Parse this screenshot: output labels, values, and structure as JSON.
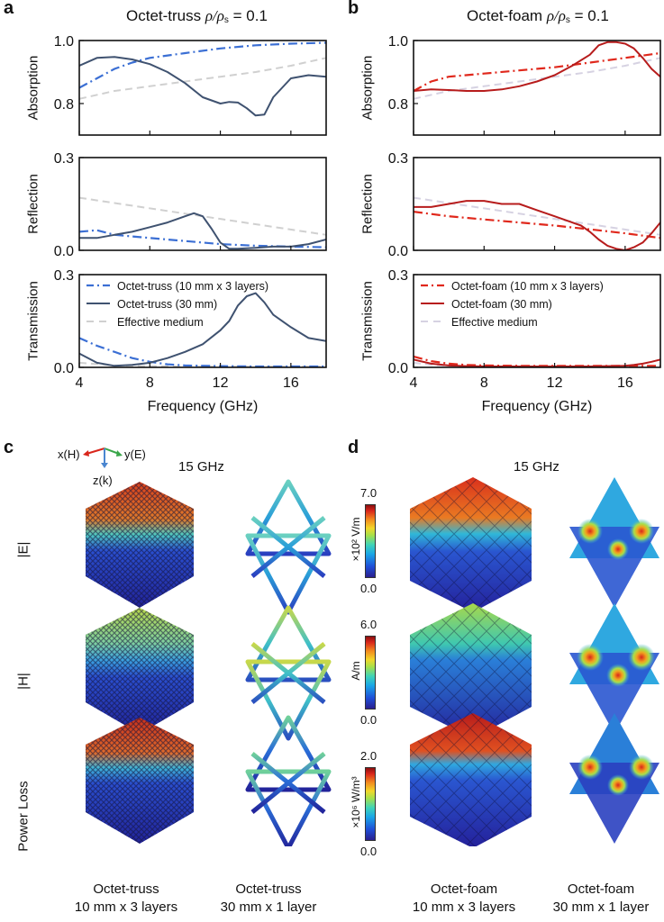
{
  "panels": {
    "a": {
      "letter": "a",
      "title_prefix": "Octet-truss ",
      "title_rho": "ρ/ρ",
      "title_sub": "s",
      "title_suffix": " = 0.1"
    },
    "b": {
      "letter": "b",
      "title_prefix": "Octet-foam ",
      "title_rho": "ρ/ρ",
      "title_sub": "s",
      "title_suffix": " = 0.1"
    },
    "c": {
      "letter": "c",
      "frequency_label": "15 GHz",
      "axes_triad": {
        "x": "x(H)",
        "y": "y(E)",
        "z": "z(k)"
      },
      "row_labels": [
        "|E|",
        "|H|",
        "Power Loss"
      ],
      "captions": [
        {
          "line1": "Octet-truss",
          "line2": "10 mm x 3 layers"
        },
        {
          "line1": "Octet-truss",
          "line2": "30 mm x 1 layer"
        }
      ]
    },
    "d": {
      "letter": "d",
      "frequency_label": "15 GHz",
      "colorbars": [
        {
          "max": "7.0",
          "min": "0.0",
          "unit": "×10² V/m"
        },
        {
          "max": "6.0",
          "min": "0.0",
          "unit": "A/m"
        },
        {
          "max": "2.0",
          "min": "0.0",
          "unit": "×10⁶ W/m³"
        }
      ],
      "captions": [
        {
          "line1": "Octet-foam",
          "line2": "10 mm x 3 layers"
        },
        {
          "line1": "Octet-foam",
          "line2": "30 mm x 1 layer"
        }
      ]
    }
  },
  "colors": {
    "truss_layers": "#3b6fd4",
    "truss_30mm": "#3f5270",
    "foam_layers": "#e0281c",
    "foam_30mm": "#b71c1c",
    "effective_medium_a": "#d0d0d0",
    "effective_medium_b": "#d6d2e2"
  },
  "chart_data": [
    {
      "type": "line",
      "panel": "a",
      "title": "Octet-truss ρ/ρs = 0.1",
      "xlabel": "Frequency (GHz)",
      "xlim": [
        4,
        18
      ],
      "xticks": [
        4,
        8,
        12,
        16
      ],
      "legend": [
        "Octet-truss (10 mm x 3 layers)",
        "Octet-truss (30 mm)",
        "Effective medium"
      ],
      "legend_position": "top-left (Transmission subplot)",
      "subplots": [
        {
          "ylabel": "Absorption",
          "ylim": [
            0.7,
            1.0
          ],
          "yticks": [
            "0.8",
            "1.0"
          ],
          "series": [
            {
              "name": "Octet-truss (10 mm x 3 layers)",
              "style": "dashdot",
              "x": [
                4,
                5,
                6,
                7,
                8,
                10,
                12,
                14,
                16,
                18
              ],
              "y": [
                0.85,
                0.88,
                0.91,
                0.93,
                0.945,
                0.96,
                0.975,
                0.985,
                0.99,
                0.993
              ]
            },
            {
              "name": "Octet-truss (30 mm)",
              "style": "solid",
              "x": [
                4,
                5,
                6,
                7,
                8,
                9,
                10,
                11,
                12,
                12.5,
                13,
                13.5,
                14,
                14.5,
                15,
                16,
                17,
                18
              ],
              "y": [
                0.92,
                0.945,
                0.948,
                0.94,
                0.925,
                0.9,
                0.865,
                0.82,
                0.8,
                0.805,
                0.803,
                0.785,
                0.762,
                0.765,
                0.82,
                0.88,
                0.89,
                0.885
              ]
            },
            {
              "name": "Effective medium",
              "style": "dashed",
              "x": [
                4,
                6,
                8,
                10,
                12,
                14,
                16,
                18
              ],
              "y": [
                0.815,
                0.84,
                0.855,
                0.87,
                0.885,
                0.9,
                0.92,
                0.945
              ]
            }
          ]
        },
        {
          "ylabel": "Reflection",
          "ylim": [
            0.0,
            0.3
          ],
          "yticks": [
            "0.0",
            "0.3"
          ],
          "series": [
            {
              "name": "Octet-truss (10 mm x 3 layers)",
              "style": "dashdot",
              "x": [
                4,
                5,
                6,
                8,
                10,
                12,
                14,
                16,
                18
              ],
              "y": [
                0.06,
                0.065,
                0.05,
                0.04,
                0.03,
                0.02,
                0.015,
                0.012,
                0.01
              ]
            },
            {
              "name": "Octet-truss (30 mm)",
              "style": "solid",
              "x": [
                4,
                5,
                6,
                7,
                8,
                9,
                10,
                10.5,
                11,
                11.5,
                12,
                12.5,
                13,
                14,
                15,
                16,
                17,
                18
              ],
              "y": [
                0.04,
                0.04,
                0.05,
                0.06,
                0.075,
                0.09,
                0.11,
                0.12,
                0.11,
                0.07,
                0.025,
                0.005,
                0.005,
                0.008,
                0.012,
                0.012,
                0.02,
                0.035
              ]
            },
            {
              "name": "Effective medium",
              "style": "dashed",
              "x": [
                4,
                18
              ],
              "y": [
                0.17,
                0.05
              ]
            }
          ]
        },
        {
          "ylabel": "Transmission",
          "ylim": [
            0.0,
            0.3
          ],
          "yticks": [
            "0.0",
            "0.3"
          ],
          "series": [
            {
              "name": "Octet-truss (10 mm x 3 layers)",
              "style": "dashdot",
              "x": [
                4,
                5,
                6,
                7,
                8,
                9,
                10,
                12,
                14,
                16,
                18
              ],
              "y": [
                0.095,
                0.07,
                0.05,
                0.03,
                0.018,
                0.01,
                0.006,
                0.004,
                0.003,
                0.003,
                0.003
              ]
            },
            {
              "name": "Octet-truss (30 mm)",
              "style": "solid",
              "x": [
                4,
                5,
                6,
                7,
                8,
                9,
                10,
                11,
                12,
                12.5,
                13,
                13.5,
                14,
                14.5,
                15,
                16,
                17,
                18
              ],
              "y": [
                0.045,
                0.015,
                0.005,
                0.008,
                0.015,
                0.03,
                0.05,
                0.075,
                0.12,
                0.15,
                0.2,
                0.23,
                0.24,
                0.21,
                0.17,
                0.13,
                0.095,
                0.085
              ]
            },
            {
              "name": "Effective medium",
              "style": "dashed",
              "x": [
                4,
                6,
                8,
                10,
                18
              ],
              "y": [
                0.015,
                0.006,
                0.004,
                0.003,
                0.003
              ]
            }
          ]
        }
      ]
    },
    {
      "type": "line",
      "panel": "b",
      "title": "Octet-foam ρ/ρs = 0.1",
      "xlabel": "Frequency (GHz)",
      "xlim": [
        4,
        18
      ],
      "xticks": [
        4,
        8,
        12,
        16
      ],
      "legend": [
        "Octet-foam (10 mm x 3 layers)",
        "Octet-foam (30 mm)",
        "Effective medium"
      ],
      "legend_position": "top-left (Transmission subplot)",
      "subplots": [
        {
          "ylabel": "Absorption",
          "ylim": [
            0.7,
            1.0
          ],
          "yticks": [
            "0.8",
            "1.0"
          ],
          "series": [
            {
              "name": "Octet-foam (10 mm x 3 layers)",
              "style": "dashdot",
              "x": [
                4,
                5,
                6,
                8,
                10,
                12,
                14,
                16,
                18
              ],
              "y": [
                0.84,
                0.87,
                0.885,
                0.895,
                0.905,
                0.915,
                0.93,
                0.945,
                0.96
              ]
            },
            {
              "name": "Octet-foam (30 mm)",
              "style": "solid",
              "x": [
                4,
                5,
                6,
                7,
                8,
                9,
                10,
                11,
                12,
                13,
                14,
                14.5,
                15,
                15.5,
                16,
                16.5,
                17,
                17.5,
                18
              ],
              "y": [
                0.84,
                0.845,
                0.843,
                0.84,
                0.84,
                0.845,
                0.855,
                0.87,
                0.89,
                0.92,
                0.955,
                0.985,
                0.995,
                0.995,
                0.99,
                0.975,
                0.945,
                0.91,
                0.885
              ]
            },
            {
              "name": "Effective medium",
              "style": "dashed",
              "x": [
                4,
                6,
                8,
                10,
                12,
                14,
                16,
                18
              ],
              "y": [
                0.815,
                0.84,
                0.855,
                0.87,
                0.885,
                0.9,
                0.92,
                0.945
              ]
            }
          ]
        },
        {
          "ylabel": "Reflection",
          "ylim": [
            0.0,
            0.3
          ],
          "yticks": [
            "0.0",
            "0.3"
          ],
          "series": [
            {
              "name": "Octet-foam (10 mm x 3 layers)",
              "style": "dashdot",
              "x": [
                4,
                6,
                8,
                10,
                12,
                14,
                16,
                18
              ],
              "y": [
                0.125,
                0.11,
                0.1,
                0.09,
                0.08,
                0.068,
                0.055,
                0.04
              ]
            },
            {
              "name": "Octet-foam (30 mm)",
              "style": "solid",
              "x": [
                4,
                5,
                6,
                7,
                8,
                9,
                10,
                11,
                12,
                13,
                13.5,
                14,
                14.5,
                15,
                15.5,
                16,
                16.5,
                17,
                17.5,
                18
              ],
              "y": [
                0.14,
                0.14,
                0.15,
                0.16,
                0.16,
                0.15,
                0.15,
                0.13,
                0.11,
                0.09,
                0.08,
                0.06,
                0.035,
                0.015,
                0.005,
                0.0,
                0.01,
                0.025,
                0.055,
                0.09
              ]
            },
            {
              "name": "Effective medium",
              "style": "dashed",
              "x": [
                4,
                18
              ],
              "y": [
                0.17,
                0.05
              ]
            }
          ]
        },
        {
          "ylabel": "Transmission",
          "ylim": [
            0.0,
            0.3
          ],
          "yticks": [
            "0.0",
            "0.3"
          ],
          "series": [
            {
              "name": "Octet-foam (10 mm x 3 layers)",
              "style": "dashdot",
              "x": [
                4,
                5,
                6,
                7,
                8,
                10,
                12,
                14,
                16,
                18
              ],
              "y": [
                0.035,
                0.02,
                0.012,
                0.008,
                0.006,
                0.005,
                0.005,
                0.005,
                0.005,
                0.005
              ]
            },
            {
              "name": "Octet-foam (30 mm)",
              "style": "solid",
              "x": [
                4,
                5,
                6,
                7,
                8,
                10,
                12,
                14,
                16,
                16.5,
                17,
                17.5,
                18
              ],
              "y": [
                0.025,
                0.012,
                0.006,
                0.004,
                0.003,
                0.003,
                0.003,
                0.003,
                0.005,
                0.008,
                0.012,
                0.018,
                0.025
              ]
            },
            {
              "name": "Effective medium",
              "style": "dashed",
              "x": [
                4,
                5,
                6,
                8,
                18
              ],
              "y": [
                0.015,
                0.008,
                0.005,
                0.003,
                0.003
              ]
            }
          ]
        }
      ]
    }
  ]
}
